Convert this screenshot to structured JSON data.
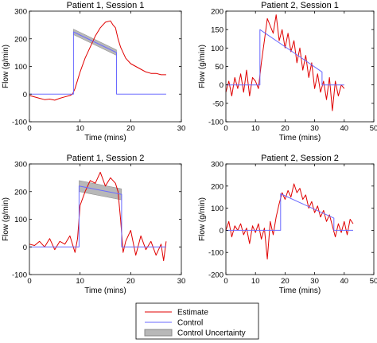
{
  "colors": {
    "estimate": "#e00000",
    "control": "#6a6aff",
    "uncertainty": "#b8b8b8",
    "axis": "#000000"
  },
  "legend": [
    {
      "key": "estimate",
      "label": "Estimate"
    },
    {
      "key": "control",
      "label": "Control"
    },
    {
      "key": "uncertainty",
      "label": "Control Uncertainty"
    }
  ],
  "chart_data": [
    {
      "type": "line",
      "title": "Patient 1, Session 1",
      "xlabel": "Time (mins)",
      "ylabel": "Flow (g/min)",
      "xlim": [
        0,
        30
      ],
      "ylim": [
        -100,
        300
      ],
      "xticks": [
        0,
        10,
        20,
        30
      ],
      "yticks": [
        -100,
        0,
        100,
        200,
        300
      ],
      "series": [
        {
          "name": "Estimate",
          "x": [
            0,
            2,
            3,
            4,
            5,
            6,
            7,
            8,
            8.5,
            9,
            10,
            11,
            12,
            13,
            14,
            15,
            16,
            16.5,
            17,
            17.5,
            18,
            19,
            20,
            21,
            22,
            23,
            24,
            25,
            26,
            27
          ],
          "y": [
            -5,
            -15,
            -20,
            -18,
            -22,
            -15,
            -10,
            -5,
            0,
            20,
            80,
            130,
            170,
            210,
            240,
            260,
            265,
            250,
            240,
            200,
            170,
            130,
            110,
            100,
            90,
            80,
            75,
            75,
            70,
            70
          ]
        },
        {
          "name": "Control",
          "x": [
            0,
            8.7,
            8.7,
            17.2,
            17.2,
            27
          ],
          "y": [
            0,
            0,
            225,
            150,
            0,
            0
          ]
        }
      ],
      "uncertainty": {
        "x": [
          8.7,
          17.2
        ],
        "upper": [
          235,
          160
        ],
        "lower": [
          215,
          140
        ]
      }
    },
    {
      "type": "line",
      "title": "Patient 2, Session 1",
      "xlabel": "Time (mins)",
      "ylabel": "Flow (g/min)",
      "xlim": [
        0,
        50
      ],
      "ylim": [
        -100,
        200
      ],
      "xticks": [
        0,
        10,
        20,
        30,
        40,
        50
      ],
      "yticks": [
        -100,
        -50,
        0,
        50,
        100,
        150,
        200
      ],
      "series": [
        {
          "name": "Estimate",
          "x": [
            0,
            1,
            2,
            3,
            4,
            5,
            6,
            7,
            8,
            9,
            10,
            11,
            12,
            13,
            14,
            15,
            16,
            17,
            18,
            19,
            20,
            21,
            22,
            23,
            24,
            25,
            26,
            27,
            28,
            29,
            30,
            31,
            32,
            33,
            34,
            35,
            36,
            37,
            38,
            39,
            40
          ],
          "y": [
            -20,
            10,
            -30,
            20,
            -10,
            30,
            -20,
            40,
            -30,
            20,
            10,
            -10,
            60,
            120,
            180,
            160,
            140,
            190,
            120,
            150,
            100,
            140,
            90,
            120,
            60,
            100,
            40,
            80,
            20,
            60,
            -10,
            30,
            -20,
            10,
            -40,
            20,
            -70,
            10,
            -30,
            0,
            -10
          ]
        },
        {
          "name": "Control",
          "x": [
            0,
            11.5,
            11.5,
            32.5,
            32.5,
            40
          ],
          "y": [
            0,
            0,
            150,
            35,
            0,
            0
          ]
        }
      ]
    },
    {
      "type": "line",
      "title": "Patient 1, Session 2",
      "xlabel": "Time (mins)",
      "ylabel": "Flow (g/min)",
      "xlim": [
        0,
        30
      ],
      "ylim": [
        -100,
        300
      ],
      "xticks": [
        0,
        10,
        20,
        30
      ],
      "yticks": [
        -100,
        0,
        100,
        200,
        300
      ],
      "series": [
        {
          "name": "Estimate",
          "x": [
            0,
            1,
            2,
            3,
            4,
            5,
            6,
            7,
            8,
            9,
            9.5,
            10,
            11,
            12,
            13,
            14,
            15,
            16,
            17,
            17.5,
            18,
            18.5,
            19,
            20,
            21,
            22,
            23,
            24,
            25,
            26,
            26.5,
            27
          ],
          "y": [
            10,
            5,
            20,
            0,
            30,
            -10,
            20,
            10,
            40,
            -20,
            30,
            150,
            200,
            240,
            230,
            270,
            220,
            250,
            230,
            200,
            100,
            -20,
            20,
            60,
            -30,
            40,
            -10,
            20,
            -30,
            10,
            -50,
            20
          ]
        },
        {
          "name": "Control",
          "x": [
            0,
            9.8,
            9.8,
            18.2,
            18.2,
            27
          ],
          "y": [
            0,
            0,
            220,
            190,
            0,
            0
          ]
        }
      ],
      "uncertainty": {
        "x": [
          9.8,
          18.2
        ],
        "upper": [
          240,
          210
        ],
        "lower": [
          200,
          170
        ]
      }
    },
    {
      "type": "line",
      "title": "Patient 2, Session 2",
      "xlabel": "Time (mins)",
      "ylabel": "Flow (g/min)",
      "xlim": [
        0,
        50
      ],
      "ylim": [
        -200,
        300
      ],
      "xticks": [
        0,
        10,
        20,
        30,
        40,
        50
      ],
      "yticks": [
        -200,
        -100,
        0,
        100,
        200,
        300
      ],
      "series": [
        {
          "name": "Estimate",
          "x": [
            0,
            1,
            2,
            3,
            4,
            5,
            6,
            7,
            8,
            9,
            10,
            11,
            12,
            13,
            14,
            15,
            16,
            17,
            18,
            19,
            20,
            21,
            22,
            23,
            24,
            25,
            26,
            27,
            28,
            29,
            30,
            31,
            32,
            33,
            34,
            35,
            36,
            37,
            38,
            39,
            40,
            41,
            42,
            43
          ],
          "y": [
            0,
            40,
            -30,
            20,
            0,
            30,
            -20,
            10,
            -60,
            20,
            -10,
            30,
            -40,
            10,
            -130,
            40,
            -20,
            60,
            120,
            170,
            140,
            180,
            150,
            210,
            170,
            190,
            140,
            160,
            100,
            130,
            80,
            110,
            60,
            90,
            40,
            70,
            20,
            -30,
            30,
            -10,
            40,
            -20,
            50,
            30
          ]
        },
        {
          "name": "Control",
          "x": [
            0,
            18.5,
            18.5,
            36.5,
            36.5,
            43
          ],
          "y": [
            0,
            0,
            165,
            55,
            0,
            0
          ]
        }
      ]
    }
  ]
}
